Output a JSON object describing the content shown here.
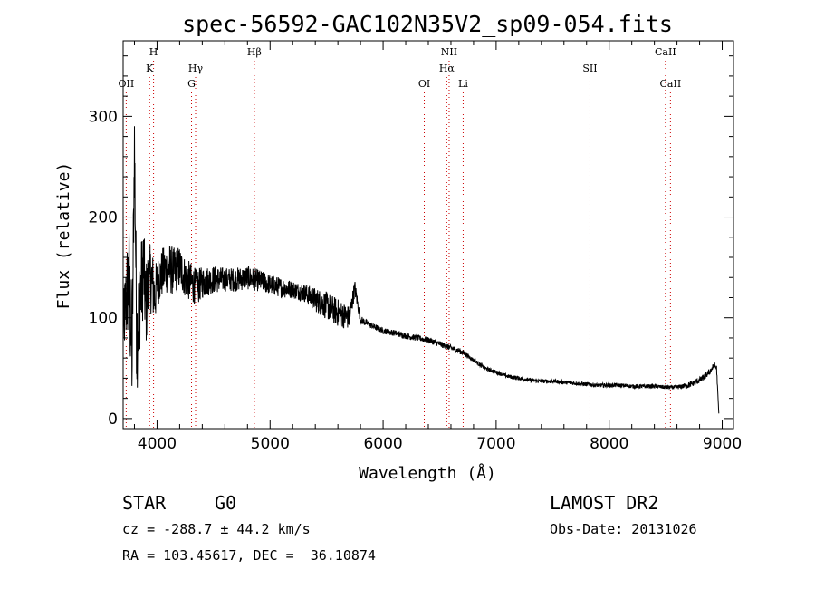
{
  "chart_data": {
    "type": "line",
    "title": "spec-56592-GAC102N35V2_sp09-054.fits",
    "xlabel": "Wavelength (Å)",
    "ylabel": "Flux (relative)",
    "xlim": [
      3700,
      9100
    ],
    "ylim": [
      -10,
      375
    ],
    "xticks": [
      4000,
      5000,
      6000,
      7000,
      8000,
      9000
    ],
    "yticks": [
      0,
      100,
      200,
      300
    ],
    "grid": false,
    "spectrum": {
      "x": [
        3700,
        3750,
        3780,
        3800,
        3820,
        3850,
        3880,
        3900,
        3920,
        3950,
        3980,
        4000,
        4050,
        4100,
        4150,
        4200,
        4250,
        4300,
        4350,
        4400,
        4500,
        4600,
        4700,
        4800,
        4900,
        5000,
        5100,
        5200,
        5300,
        5400,
        5500,
        5600,
        5700,
        5750,
        5800,
        5900,
        6000,
        6100,
        6200,
        6300,
        6400,
        6500,
        6600,
        6700,
        6800,
        6900,
        7000,
        7100,
        7200,
        7300,
        7400,
        7500,
        7600,
        7700,
        7800,
        7900,
        8000,
        8100,
        8200,
        8300,
        8400,
        8500,
        8600,
        8700,
        8800,
        8850,
        8900,
        8930,
        8950,
        8970
      ],
      "y": [
        90,
        140,
        60,
        275,
        80,
        120,
        150,
        110,
        130,
        140,
        120,
        135,
        145,
        150,
        145,
        150,
        140,
        135,
        130,
        135,
        138,
        138,
        138,
        140,
        137,
        133,
        130,
        128,
        125,
        118,
        112,
        105,
        100,
        130,
        98,
        92,
        87,
        85,
        82,
        80,
        78,
        74,
        70,
        66,
        58,
        50,
        46,
        42,
        40,
        38,
        37,
        37,
        36,
        35,
        34,
        33,
        33,
        33,
        32,
        32,
        32,
        31,
        31,
        33,
        38,
        42,
        48,
        53,
        50,
        5
      ],
      "noise": [
        30,
        60,
        60,
        40,
        60,
        50,
        45,
        45,
        40,
        35,
        30,
        25,
        25,
        25,
        25,
        22,
        20,
        20,
        18,
        16,
        14,
        12,
        12,
        12,
        11,
        10,
        10,
        9,
        9,
        12,
        14,
        14,
        12,
        8,
        4,
        3,
        3,
        3,
        3,
        3,
        3,
        3,
        3,
        3,
        2,
        2,
        2,
        2,
        2,
        2,
        2,
        2,
        2,
        2,
        2,
        2,
        2,
        2,
        2,
        2,
        2,
        2,
        2,
        3,
        3,
        3,
        3,
        3,
        3,
        0
      ]
    },
    "spectral_lines": [
      {
        "label": "OII",
        "wavelength": 3727,
        "row": 3
      },
      {
        "label": "H",
        "wavelength": 3969,
        "row": 1
      },
      {
        "label": "K",
        "wavelength": 3934,
        "row": 2
      },
      {
        "label": "Hγ",
        "wavelength": 4341,
        "row": 2
      },
      {
        "label": "G",
        "wavelength": 4305,
        "row": 3
      },
      {
        "label": "Hβ",
        "wavelength": 4861,
        "row": 1
      },
      {
        "label": "OI",
        "wavelength": 6364,
        "row": 3
      },
      {
        "label": "NII",
        "wavelength": 6584,
        "row": 1
      },
      {
        "label": "Hα",
        "wavelength": 6563,
        "row": 2
      },
      {
        "label": "Li",
        "wavelength": 6708,
        "row": 3
      },
      {
        "label": "SII",
        "wavelength": 7830,
        "row": 2
      },
      {
        "label": "CaII",
        "wavelength": 8498,
        "row": 1
      },
      {
        "label": "CaII",
        "wavelength": 8542,
        "row": 3
      }
    ],
    "line_color": "#cc0000"
  },
  "info": {
    "class_label": "STAR",
    "subclass": "G0",
    "redshift": "cz = -288.7 ± 44.2 km/s",
    "coords": "RA = 103.45617, DEC =  36.10874",
    "survey": "LAMOST DR2",
    "obs_date": "Obs-Date: 20131026"
  }
}
